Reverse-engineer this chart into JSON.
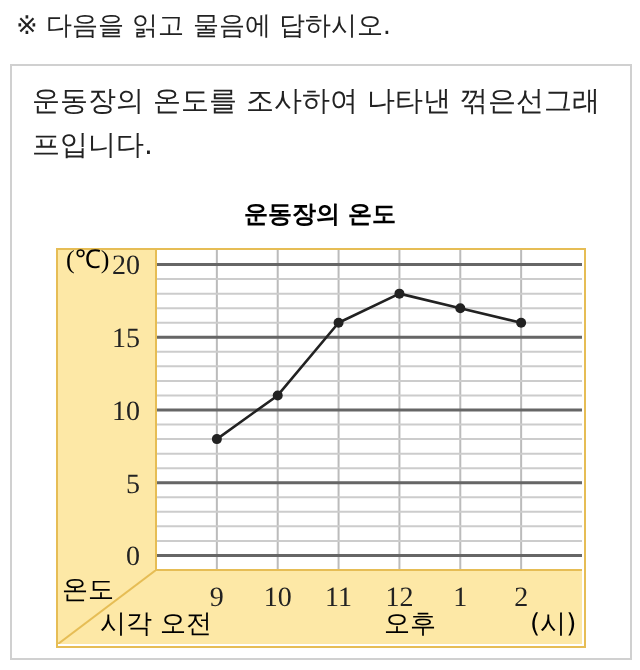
{
  "chart_data": {
    "type": "line",
    "title": "운동장의 온도",
    "ylabel": "(℃)",
    "xlabel": "(시)",
    "annotations": [
      "※ 다음을 읽고 물음에 답하시오.",
      "운동장의 온도를 조사하여 나타낸 꺾은선그래프입니다.",
      "온도",
      "시각",
      "오전",
      "오후"
    ],
    "categories": [
      "9",
      "10",
      "11",
      "12",
      "1",
      "2"
    ],
    "series": [
      {
        "color": "#222222",
        "values": [
          8,
          11,
          16,
          18,
          17,
          16
        ]
      }
    ],
    "ylim": [
      -1,
      21
    ],
    "yticks": [
      0,
      5,
      10,
      15,
      20
    ],
    "grid": true,
    "marker": "circle",
    "line_style": "solid"
  }
}
